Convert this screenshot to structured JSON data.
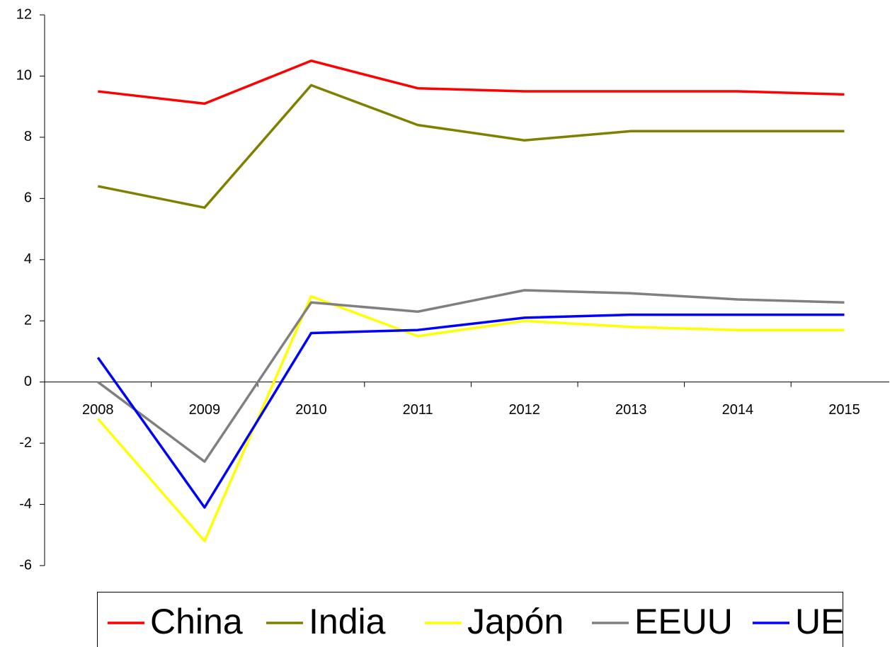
{
  "chart_data": {
    "type": "line",
    "categories": [
      "2008",
      "2009",
      "2010",
      "2011",
      "2012",
      "2013",
      "2014",
      "2015"
    ],
    "series": [
      {
        "name": "China",
        "color": "#ff0000",
        "values": [
          9.5,
          9.1,
          10.5,
          9.6,
          9.5,
          9.5,
          9.5,
          9.4
        ]
      },
      {
        "name": "India",
        "color": "#808000",
        "values": [
          6.4,
          5.7,
          9.7,
          8.4,
          7.9,
          8.2,
          8.2,
          8.2
        ]
      },
      {
        "name": "Japón",
        "color": "#ffff00",
        "values": [
          -1.2,
          -5.2,
          2.8,
          1.5,
          2.0,
          1.8,
          1.7,
          1.7
        ]
      },
      {
        "name": "EEUU",
        "color": "#808080",
        "values": [
          0.0,
          -2.6,
          2.6,
          2.3,
          3.0,
          2.9,
          2.7,
          2.6
        ]
      },
      {
        "name": "UE",
        "color": "#0000ff",
        "values": [
          0.8,
          -4.1,
          1.6,
          1.7,
          2.1,
          2.2,
          2.2,
          2.2
        ]
      }
    ],
    "ylim": [
      -6,
      12
    ],
    "yticks": [
      -6,
      -4,
      -2,
      0,
      2,
      4,
      6,
      8,
      10,
      12
    ],
    "legend": "bottom"
  }
}
